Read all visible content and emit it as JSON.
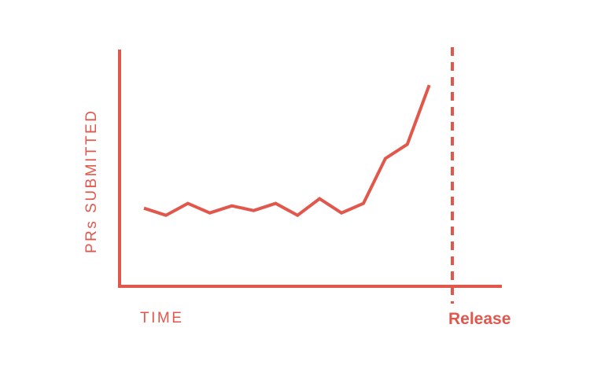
{
  "chart_data": {
    "type": "line",
    "xlabel": "TIME",
    "ylabel": "PRs SUBMITTED",
    "color": "#E2574C",
    "x_ticks_shown": false,
    "y_ticks_shown": false,
    "grid": false,
    "xlim": [
      0,
      14
    ],
    "ylim": [
      0,
      100
    ],
    "series": [
      {
        "x": [
          0,
          1,
          2,
          3,
          4,
          5,
          6,
          7,
          8,
          9,
          10,
          11,
          12,
          13
        ],
        "values": [
          33,
          30,
          35,
          31,
          34,
          32,
          35,
          30,
          37,
          31,
          35,
          54,
          60,
          85
        ]
      }
    ],
    "annotations": [
      {
        "type": "vertical-line",
        "style": "dashed",
        "x": 14.2,
        "label": "Release"
      }
    ]
  }
}
